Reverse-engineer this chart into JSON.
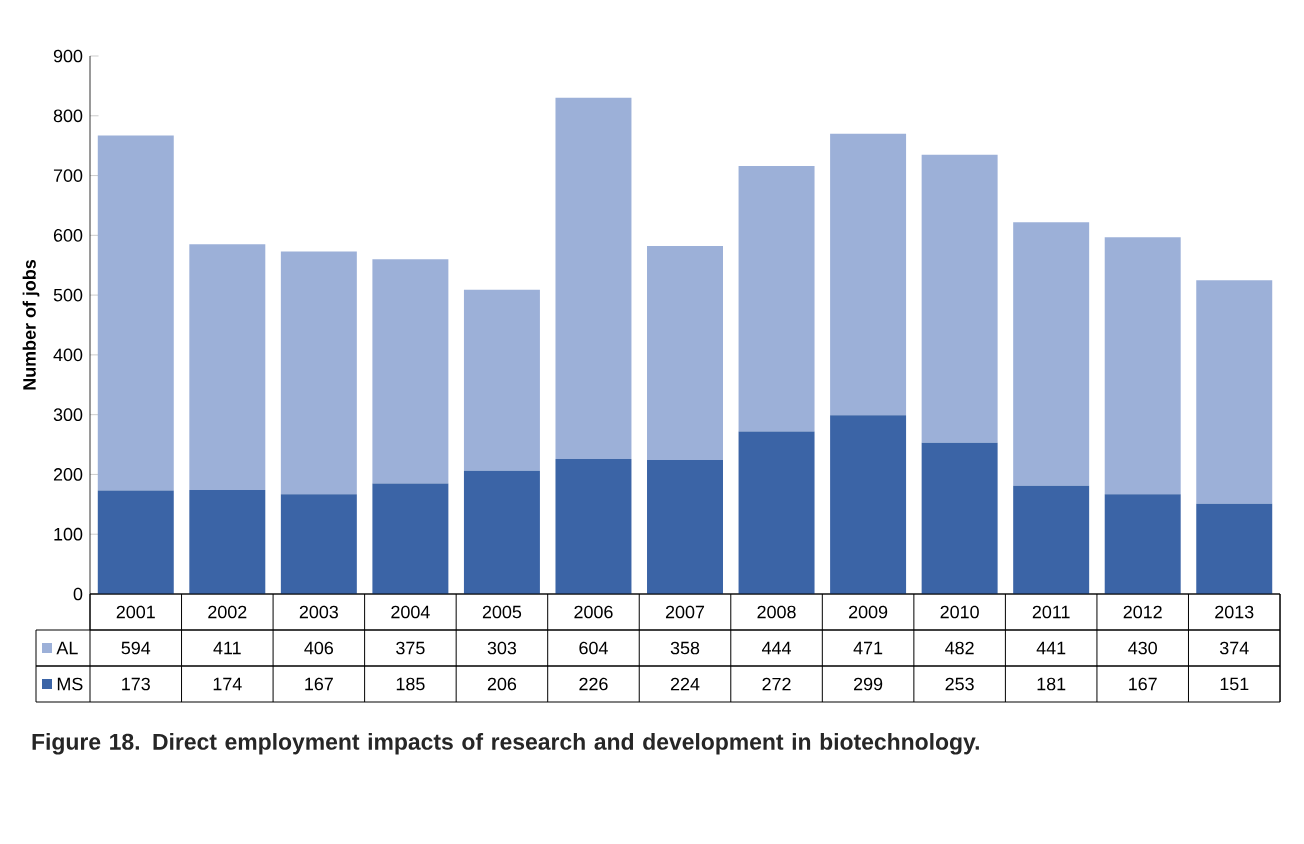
{
  "chart_data": {
    "type": "bar",
    "stacked": true,
    "categories": [
      "2001",
      "2002",
      "2003",
      "2004",
      "2005",
      "2006",
      "2007",
      "2008",
      "2009",
      "2010",
      "2011",
      "2012",
      "2013"
    ],
    "series": [
      {
        "name": "MS",
        "color": "#3b64a6",
        "values": [
          173,
          174,
          167,
          185,
          206,
          226,
          224,
          272,
          299,
          253,
          181,
          167,
          151
        ]
      },
      {
        "name": "AL",
        "color": "#9cb0d8",
        "values": [
          594,
          411,
          406,
          375,
          303,
          604,
          358,
          444,
          471,
          482,
          441,
          430,
          374
        ]
      }
    ],
    "ylabel": "Number of jobs",
    "ylim": [
      0,
      900
    ],
    "yticks": [
      0,
      100,
      200,
      300,
      400,
      500,
      600,
      700,
      800,
      900
    ],
    "data_labels": true,
    "legend": "bottom left",
    "annotations": [
      "Figure 18. Direct employment impacts of research and development in biotechnology."
    ]
  }
}
